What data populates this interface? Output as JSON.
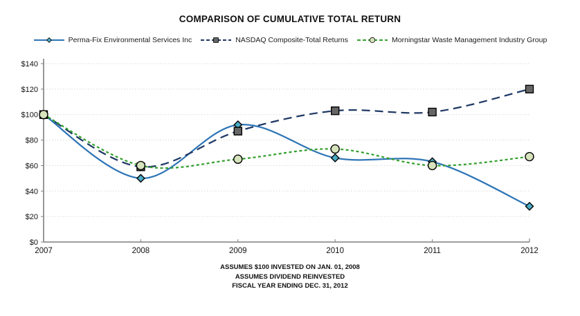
{
  "title": "COMPARISON OF CUMULATIVE TOTAL RETURN",
  "footer": {
    "lines": [
      "ASSUMES $100 INVESTED ON JAN. 01, 2008",
      "ASSUMES DIVIDEND REINVESTED",
      "FISCAL YEAR ENDING DEC. 31, 2012"
    ]
  },
  "chart_data": {
    "type": "line",
    "title": "COMPARISON OF CUMULATIVE TOTAL RETURN",
    "categories": [
      "2007",
      "2008",
      "2009",
      "2010",
      "2011",
      "2012"
    ],
    "series": [
      {
        "name": "Perma-Fix Environmental Services Inc",
        "values": [
          100,
          50,
          92,
          66,
          63,
          28
        ],
        "color": "#2E75B6",
        "dash": "solid",
        "marker": "diamond",
        "marker_fill": "#4BACC6"
      },
      {
        "name": "NASDAQ Composite-Total Returns",
        "values": [
          100,
          59,
          87,
          103,
          102,
          120
        ],
        "color": "#1F3864",
        "dash": "long-dash",
        "marker": "square",
        "marker_fill": "#666666"
      },
      {
        "name": "Morningstar Waste Management Industry Group",
        "values": [
          100,
          60,
          65,
          73,
          60,
          67
        ],
        "color": "#33A02C",
        "dash": "short-dash",
        "marker": "circle",
        "marker_fill": "#D6E3BC"
      }
    ],
    "xlabel": "",
    "ylabel": "",
    "ylim": [
      0,
      140
    ],
    "ytick_step": 20,
    "ytick_prefix": "$",
    "grid": "horizontal-dotted",
    "grid_color": "#d9d9d9",
    "axis_color": "#7f7f7f",
    "legend_position": "top"
  }
}
